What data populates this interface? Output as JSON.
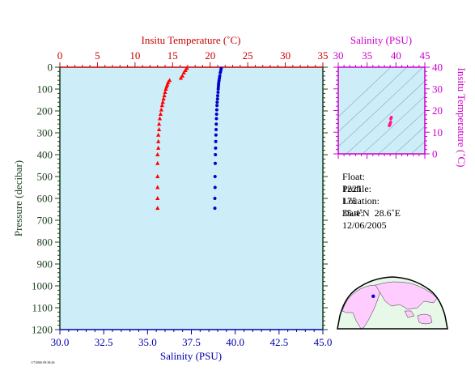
{
  "chart_data": [
    {
      "type": "scatter",
      "plot": "profile",
      "top_axis": {
        "title": "Insitu Temperature (˚C)",
        "color": "#cc0000",
        "range": [
          0,
          35
        ],
        "tick_labels": [
          "0",
          "5",
          "10",
          "15",
          "20",
          "25",
          "30",
          "35"
        ]
      },
      "bottom_axis": {
        "title": "Salinity (PSU)",
        "color": "#0000aa",
        "range": [
          30,
          45
        ],
        "tick_labels": [
          "30.0",
          "32.5",
          "35.0",
          "37.5",
          "40.0",
          "42.5",
          "45.0"
        ]
      },
      "left_axis": {
        "title": "Pressure (decibar)",
        "color": "#1a3d1a",
        "range": [
          1200,
          0
        ],
        "inverted": true,
        "tick_labels": [
          "0",
          "100",
          "200",
          "300",
          "400",
          "500",
          "600",
          "700",
          "800",
          "900",
          "1000",
          "1100",
          "1200"
        ]
      },
      "grid": false,
      "background": "#cdeef8",
      "series": [
        {
          "marker": "triangle",
          "color": "#ff0000",
          "axis": "top",
          "points": [
            {
              "x": 16.9,
              "y": 5
            },
            {
              "x": 16.7,
              "y": 15
            },
            {
              "x": 16.5,
              "y": 25
            },
            {
              "x": 16.3,
              "y": 40
            },
            {
              "x": 16.1,
              "y": 50
            },
            {
              "x": 14.6,
              "y": 60
            },
            {
              "x": 14.4,
              "y": 70
            },
            {
              "x": 14.3,
              "y": 80
            },
            {
              "x": 14.2,
              "y": 90
            },
            {
              "x": 14.1,
              "y": 100
            },
            {
              "x": 14.0,
              "y": 115
            },
            {
              "x": 13.9,
              "y": 130
            },
            {
              "x": 13.8,
              "y": 145
            },
            {
              "x": 13.7,
              "y": 160
            },
            {
              "x": 13.6,
              "y": 175
            },
            {
              "x": 13.5,
              "y": 195
            },
            {
              "x": 13.4,
              "y": 215
            },
            {
              "x": 13.3,
              "y": 235
            },
            {
              "x": 13.2,
              "y": 260
            },
            {
              "x": 13.2,
              "y": 285
            },
            {
              "x": 13.1,
              "y": 310
            },
            {
              "x": 13.1,
              "y": 340
            },
            {
              "x": 13.1,
              "y": 370
            },
            {
              "x": 13.0,
              "y": 400
            },
            {
              "x": 13.0,
              "y": 440
            },
            {
              "x": 13.0,
              "y": 500
            },
            {
              "x": 13.0,
              "y": 550
            },
            {
              "x": 13.0,
              "y": 600
            },
            {
              "x": 13.0,
              "y": 645
            }
          ]
        },
        {
          "marker": "dot",
          "color": "#0000cc",
          "axis": "bottom",
          "points": [
            {
              "x": 39.2,
              "y": 5
            },
            {
              "x": 39.18,
              "y": 15
            },
            {
              "x": 39.15,
              "y": 25
            },
            {
              "x": 39.12,
              "y": 40
            },
            {
              "x": 39.1,
              "y": 50
            },
            {
              "x": 39.08,
              "y": 60
            },
            {
              "x": 39.06,
              "y": 70
            },
            {
              "x": 39.05,
              "y": 80
            },
            {
              "x": 39.04,
              "y": 90
            },
            {
              "x": 39.03,
              "y": 100
            },
            {
              "x": 39.02,
              "y": 115
            },
            {
              "x": 39.0,
              "y": 130
            },
            {
              "x": 38.99,
              "y": 145
            },
            {
              "x": 38.97,
              "y": 160
            },
            {
              "x": 38.96,
              "y": 175
            },
            {
              "x": 38.95,
              "y": 195
            },
            {
              "x": 38.94,
              "y": 215
            },
            {
              "x": 38.93,
              "y": 235
            },
            {
              "x": 38.92,
              "y": 260
            },
            {
              "x": 38.91,
              "y": 285
            },
            {
              "x": 38.9,
              "y": 310
            },
            {
              "x": 38.89,
              "y": 340
            },
            {
              "x": 38.88,
              "y": 370
            },
            {
              "x": 38.87,
              "y": 400
            },
            {
              "x": 38.86,
              "y": 440
            },
            {
              "x": 38.85,
              "y": 500
            },
            {
              "x": 38.85,
              "y": 550
            },
            {
              "x": 38.84,
              "y": 600
            },
            {
              "x": 38.84,
              "y": 645
            }
          ]
        }
      ]
    },
    {
      "type": "scatter",
      "plot": "ts-diagram",
      "top_axis": {
        "title": "Salinity (PSU)",
        "color": "#cc00cc",
        "range": [
          30,
          45
        ],
        "tick_labels": [
          "30",
          "35",
          "40",
          "45"
        ]
      },
      "right_axis": {
        "title": "Insitu Temperature (˚C)",
        "color": "#cc00cc",
        "range": [
          0,
          40
        ],
        "tick_labels": [
          "0",
          "10",
          "20",
          "30",
          "40"
        ]
      },
      "grid": false,
      "background": "#cdeef8",
      "series": [
        {
          "marker": "dot",
          "color": "#ff1a8c",
          "points": [
            {
              "x": 38.84,
              "y": 13.0
            },
            {
              "x": 38.86,
              "y": 13.1
            },
            {
              "x": 38.88,
              "y": 13.2
            },
            {
              "x": 38.9,
              "y": 13.4
            },
            {
              "x": 38.93,
              "y": 13.6
            },
            {
              "x": 38.96,
              "y": 13.8
            },
            {
              "x": 39.0,
              "y": 14.0
            },
            {
              "x": 39.03,
              "y": 14.2
            },
            {
              "x": 39.05,
              "y": 14.4
            },
            {
              "x": 39.08,
              "y": 14.6
            },
            {
              "x": 39.1,
              "y": 16.1
            },
            {
              "x": 39.15,
              "y": 16.5
            },
            {
              "x": 39.2,
              "y": 16.9
            }
          ]
        }
      ]
    }
  ],
  "info": {
    "float_label": "Float:",
    "float_value": "1221",
    "profile_label": "Profile:",
    "profile_value": "175",
    "location_label": "Location:",
    "location_value": "35.4˚N  28.6˚E",
    "date_label": "Date:",
    "date_value": "12/06/2005"
  },
  "map": {
    "land_color": "#ffccff",
    "ocean_color": "#e8f8e8",
    "marker_color": "#0000cc",
    "location": {
      "lat": 35.4,
      "lon": 28.6
    }
  },
  "footer": {
    "tiny_text": "1/7/2006 09:38:46"
  }
}
